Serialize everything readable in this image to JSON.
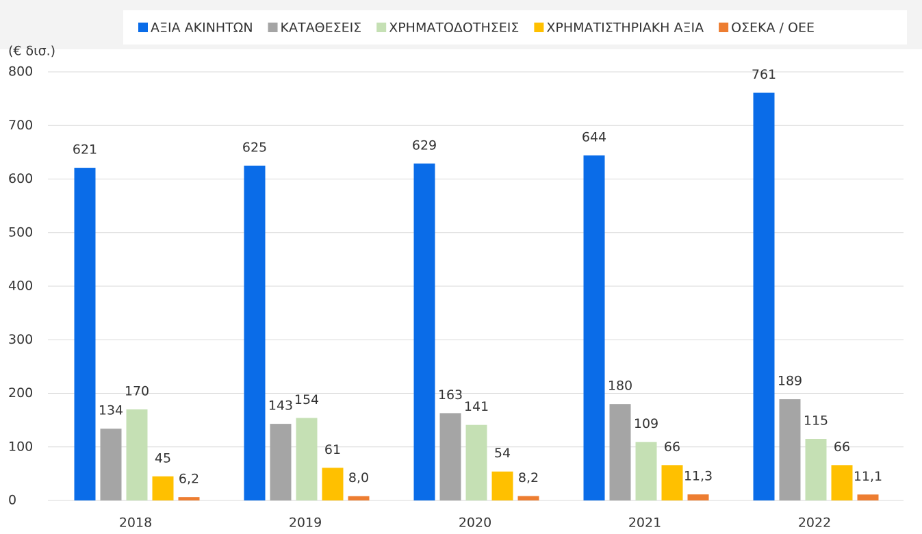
{
  "chart_data": {
    "type": "bar",
    "y_label": "(€ δισ.)",
    "categories": [
      "2018",
      "2019",
      "2020",
      "2021",
      "2022"
    ],
    "series": [
      {
        "name": "ΑΞΙΑ ΑΚΙΝΗΤΩΝ",
        "color": "#0a6ce8",
        "values": [
          621,
          625,
          629,
          644,
          761
        ]
      },
      {
        "name": "ΚΑΤΑΘΕΣΕΙΣ",
        "color": "#a5a5a5",
        "values": [
          134,
          143,
          163,
          180,
          189
        ]
      },
      {
        "name": "ΧΡΗΜΑΤΟΔΟΤΗΣΕΙΣ",
        "color": "#c5e0b4",
        "values": [
          170,
          154,
          141,
          109,
          115
        ]
      },
      {
        "name": "ΧΡΗΜΑΤΙΣΤΗΡΙΑΚΗ ΑΞΙΑ",
        "color": "#ffc000",
        "values": [
          45,
          61,
          54,
          66,
          66
        ]
      },
      {
        "name": "ΟΣΕΚΑ / ΟΕΕ",
        "color": "#ed7d31",
        "values": [
          6.2,
          8.0,
          8.2,
          11.3,
          11.1
        ],
        "value_labels": [
          "6,2",
          "8,0",
          "8,2",
          "11,3",
          "11,1"
        ]
      }
    ],
    "ylim": [
      0,
      800
    ],
    "yticks": [
      0,
      100,
      200,
      300,
      400,
      500,
      600,
      700,
      800
    ],
    "grid": true,
    "legend": "top"
  }
}
